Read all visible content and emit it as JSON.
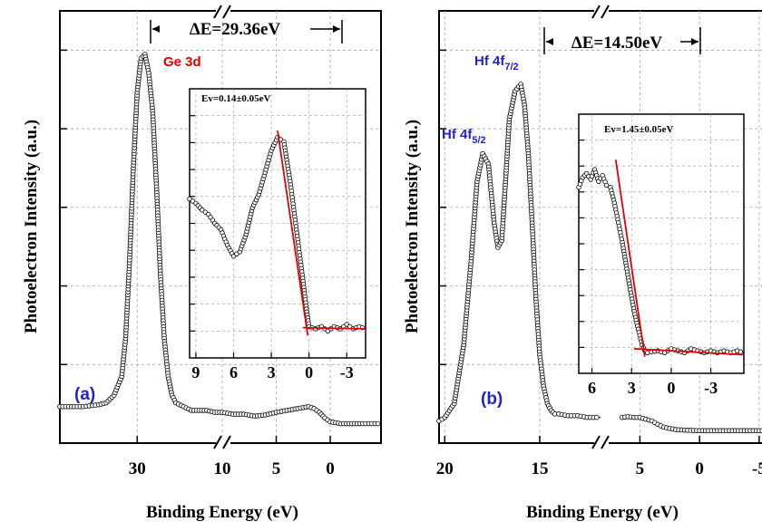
{
  "chart_data": [
    {
      "panel": "(a)",
      "type": "line",
      "ylabel": "Photoelectron Intensity (a.u.)",
      "xlabel": "Binding Energy (eV)",
      "x_segments": [
        {
          "xlim": [
            40,
            19
          ],
          "ticks": [
            30
          ]
        },
        {
          "xlim": [
            10,
            -4.7
          ],
          "ticks": [
            10,
            5,
            0
          ]
        }
      ],
      "tick_labels": [
        "30",
        "10",
        "5",
        "0"
      ],
      "peak_label": "Ge 3d",
      "delta_e": "ΔE=29.36eV",
      "series": [
        {
          "segment": 0,
          "x": [
            40,
            37,
            35,
            34,
            33,
            32,
            31.5,
            31,
            30.5,
            30,
            29.5,
            29,
            28.8,
            28.5,
            28,
            27.5,
            27,
            26.5,
            26,
            25.5,
            25,
            24,
            23,
            22,
            21,
            20,
            19
          ],
          "y": [
            0.07,
            0.07,
            0.075,
            0.08,
            0.1,
            0.15,
            0.25,
            0.45,
            0.7,
            0.9,
            0.99,
            1.0,
            0.98,
            0.95,
            0.85,
            0.65,
            0.42,
            0.25,
            0.15,
            0.1,
            0.08,
            0.07,
            0.06,
            0.06,
            0.06,
            0.055,
            0.055
          ]
        },
        {
          "segment": 1,
          "x": [
            10,
            9,
            8,
            7,
            6,
            5,
            4,
            3,
            2,
            1.5,
            1,
            0.5,
            0,
            -1,
            -2,
            -3,
            -4.7
          ],
          "y": [
            0.055,
            0.05,
            0.05,
            0.045,
            0.048,
            0.055,
            0.06,
            0.065,
            0.07,
            0.065,
            0.055,
            0.04,
            0.03,
            0.025,
            0.025,
            0.025,
            0.025
          ]
        }
      ],
      "inset": {
        "annotation": "Ev=0.14±0.05eV",
        "xlim": [
          9.5,
          -4.5
        ],
        "ylim": [
          0,
          1.05
        ],
        "tick_labels": [
          "9",
          "6",
          "3",
          "0",
          "-3"
        ],
        "tick_values": [
          9,
          6,
          3,
          0,
          -3
        ],
        "data": {
          "x": [
            9.5,
            9,
            8.5,
            8,
            7.5,
            7,
            6.5,
            6,
            5.5,
            5,
            4.5,
            4,
            3.5,
            3,
            2.5,
            2,
            1.5,
            1,
            0.5,
            0.2,
            0,
            -0.5,
            -1,
            -1.5,
            -2,
            -2.5,
            -3,
            -3.5,
            -4,
            -4.5
          ],
          "y": [
            0.64,
            0.62,
            0.59,
            0.57,
            0.53,
            0.5,
            0.43,
            0.38,
            0.4,
            0.48,
            0.6,
            0.66,
            0.76,
            0.86,
            0.92,
            0.9,
            0.72,
            0.5,
            0.28,
            0.14,
            0.06,
            0.05,
            0.06,
            0.04,
            0.06,
            0.05,
            0.07,
            0.05,
            0.06,
            0.05
          ]
        },
        "fit_line": {
          "x": [
            2.5,
            0.1
          ],
          "y": [
            0.95,
            0.02
          ]
        },
        "baseline": {
          "x": [
            0.5,
            -4.5
          ],
          "y": [
            0.055,
            0.05
          ]
        }
      }
    },
    {
      "panel": "(b)",
      "type": "line",
      "ylabel": "Photoelectron Intensity (a.u.)",
      "xlabel": "Binding Energy (eV)",
      "x_segments": [
        {
          "xlim": [
            20.3,
            11.8
          ],
          "ticks": [
            20,
            15
          ]
        },
        {
          "xlim": [
            8.3,
            -6.3
          ],
          "ticks": [
            5,
            0,
            -5
          ]
        }
      ],
      "tick_labels": [
        "20",
        "15",
        "5",
        "0",
        "-5"
      ],
      "peak_labels": [
        "Hf 4f7/2",
        "Hf 4f5/2"
      ],
      "delta_e": "ΔE=14.50eV",
      "series": [
        {
          "segment": 0,
          "x": [
            20.3,
            20,
            19.5,
            19,
            18.6,
            18.3,
            18,
            17.7,
            17.4,
            17.2,
            17,
            16.8,
            16.6,
            16.3,
            16,
            15.8,
            15.6,
            15.4,
            15.2,
            15,
            14.8,
            14.6,
            14.4,
            14.2,
            14,
            13.5,
            13,
            12.5,
            12,
            11.8
          ],
          "y": [
            0.03,
            0.04,
            0.08,
            0.25,
            0.5,
            0.72,
            0.8,
            0.77,
            0.6,
            0.53,
            0.55,
            0.72,
            0.9,
            0.98,
            1.0,
            0.94,
            0.8,
            0.6,
            0.38,
            0.22,
            0.13,
            0.08,
            0.06,
            0.05,
            0.05,
            0.045,
            0.045,
            0.04,
            0.04,
            0.04
          ]
        },
        {
          "segment": 1,
          "x": [
            6.5,
            6,
            5.5,
            5,
            4.5,
            4,
            3.5,
            3,
            2,
            1,
            0,
            -1,
            -2,
            -3,
            -4,
            -5,
            -6,
            -6.3
          ],
          "y": [
            0.04,
            0.042,
            0.04,
            0.04,
            0.035,
            0.03,
            0.02,
            0.012,
            0.005,
            0.003,
            0.002,
            0.002,
            0.002,
            0.002,
            0.002,
            0.002,
            0.002,
            0.002
          ]
        }
      ],
      "inset": {
        "annotation": "Ev=1.45±0.05eV",
        "xlim": [
          7,
          -5.5
        ],
        "ylim": [
          0,
          1.15
        ],
        "tick_labels": [
          "6",
          "3",
          "0",
          "-3"
        ],
        "tick_values": [
          6,
          3,
          0,
          -3
        ],
        "data": {
          "x": [
            7,
            6.7,
            6.4,
            6.1,
            5.8,
            5.5,
            5.2,
            4.9,
            4.6,
            4.3,
            4,
            3.7,
            3.4,
            3.1,
            2.8,
            2.5,
            2.2,
            2,
            1.8,
            1.5,
            1,
            0.5,
            0,
            -0.5,
            -1,
            -1.5,
            -2,
            -2.5,
            -3,
            -3.5,
            -4,
            -4.5,
            -5,
            -5.5
          ],
          "y": [
            0.88,
            0.93,
            0.95,
            0.92,
            0.97,
            0.91,
            0.94,
            0.89,
            0.88,
            0.8,
            0.7,
            0.6,
            0.48,
            0.36,
            0.25,
            0.16,
            0.08,
            0.05,
            0.04,
            0.045,
            0.05,
            0.04,
            0.06,
            0.05,
            0.04,
            0.06,
            0.05,
            0.04,
            0.05,
            0.04,
            0.05,
            0.04,
            0.05,
            0.04
          ]
        },
        "fit_line": {
          "x": [
            4.2,
            2.0
          ],
          "y": [
            1.02,
            0.02
          ]
        },
        "baseline": {
          "x": [
            2.8,
            -5.5
          ],
          "y": [
            0.06,
            0.03
          ]
        }
      }
    }
  ]
}
